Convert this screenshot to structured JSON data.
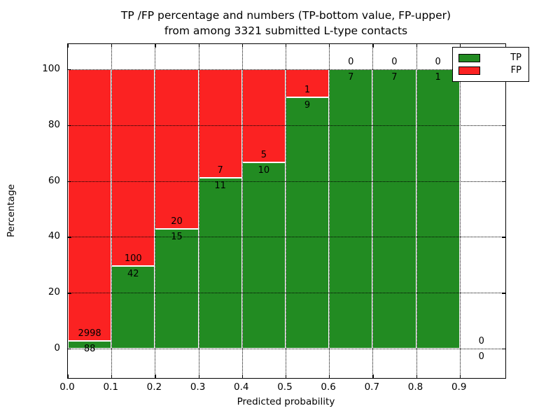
{
  "chart_data": {
    "type": "bar",
    "subtype": "stacked-percentage-histogram",
    "title_line1": "TP /FP percentage and numbers (TP-bottom value, FP-upper)",
    "title_line2": "from among 3321 submitted L-type contacts",
    "total_contacts": 3321,
    "xlabel": "Predicted probability",
    "ylabel": "Percentage",
    "x_ticks": [
      "0.0",
      "0.1",
      "0.2",
      "0.3",
      "0.4",
      "0.5",
      "0.6",
      "0.7",
      "0.8",
      "0.9"
    ],
    "y_ticks": [
      "0",
      "20",
      "40",
      "60",
      "80",
      "100"
    ],
    "xlim": [
      0.0,
      1.005
    ],
    "ylim": [
      -10.5,
      109.0
    ],
    "grid": true,
    "legend_position": "upper-right",
    "legend": [
      {
        "label": "TP",
        "color": "#228b22"
      },
      {
        "label": "FP",
        "color": "#fb2222"
      }
    ],
    "colors": {
      "tp": "#228b22",
      "fp": "#fb2222",
      "bar_edge": "#ffffff",
      "grid": "#000000"
    },
    "bins": [
      {
        "x_start": 0.0,
        "x_end": 0.1,
        "tp": 88,
        "fp": 2998,
        "tp_pct": 2.85,
        "has_bar": true
      },
      {
        "x_start": 0.1,
        "x_end": 0.2,
        "tp": 42,
        "fp": 100,
        "tp_pct": 29.58,
        "has_bar": true
      },
      {
        "x_start": 0.2,
        "x_end": 0.3,
        "tp": 15,
        "fp": 20,
        "tp_pct": 42.86,
        "has_bar": true
      },
      {
        "x_start": 0.3,
        "x_end": 0.4,
        "tp": 11,
        "fp": 7,
        "tp_pct": 61.11,
        "has_bar": true
      },
      {
        "x_start": 0.4,
        "x_end": 0.5,
        "tp": 10,
        "fp": 5,
        "tp_pct": 66.67,
        "has_bar": true
      },
      {
        "x_start": 0.5,
        "x_end": 0.6,
        "tp": 9,
        "fp": 1,
        "tp_pct": 90.0,
        "has_bar": true
      },
      {
        "x_start": 0.6,
        "x_end": 0.7,
        "tp": 7,
        "fp": 0,
        "tp_pct": 100.0,
        "has_bar": true
      },
      {
        "x_start": 0.7,
        "x_end": 0.8,
        "tp": 7,
        "fp": 0,
        "tp_pct": 100.0,
        "has_bar": true
      },
      {
        "x_start": 0.8,
        "x_end": 0.9,
        "tp": 1,
        "fp": 0,
        "tp_pct": 100.0,
        "has_bar": true
      },
      {
        "x_start": 0.9,
        "x_end": 1.0,
        "tp": 0,
        "fp": 0,
        "tp_pct": 0.0,
        "has_bar": false
      }
    ]
  }
}
